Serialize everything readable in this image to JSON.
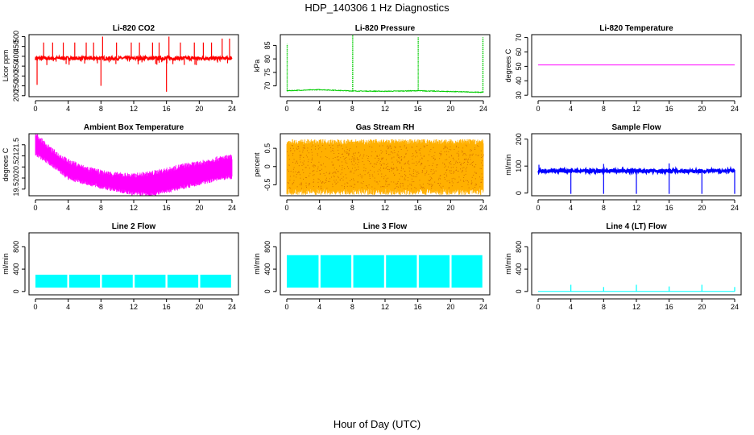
{
  "figure": {
    "title": "HDP_140306  1 Hz Diagnostics",
    "xlabel": "Hour of Day (UTC)"
  },
  "colors": {
    "co2": "#ff0000",
    "pressure": "#00cc00",
    "temperature": "#ff00ff",
    "box_temperature": "#ff00ff",
    "rh_fill": "#ffb000",
    "rh_dots": "#cc6600",
    "sample_flow": "#0000ff",
    "line_flow": "#00ffff"
  },
  "chart_data": [
    {
      "id": "co2",
      "type": "line",
      "title": "Li-820 CO2",
      "ylabel": "Licor ppm",
      "xlim": [
        0,
        24
      ],
      "ylim": [
        195,
        510
      ],
      "xticks": [
        0,
        4,
        8,
        12,
        16,
        20,
        24
      ],
      "yticks": [
        200,
        250,
        300,
        350,
        400,
        450,
        500
      ],
      "baseline": 390,
      "spikes": [
        [
          0.2,
          255
        ],
        [
          1.0,
          470
        ],
        [
          2.1,
          470
        ],
        [
          3.4,
          470
        ],
        [
          4.8,
          470
        ],
        [
          6.2,
          470
        ],
        [
          7.1,
          470
        ],
        [
          8.0,
          250
        ],
        [
          8.2,
          500
        ],
        [
          9.9,
          470
        ],
        [
          11.7,
          470
        ],
        [
          12.7,
          470
        ],
        [
          14.3,
          470
        ],
        [
          15.1,
          470
        ],
        [
          16.0,
          220
        ],
        [
          16.3,
          500
        ],
        [
          17.7,
          470
        ],
        [
          19.4,
          470
        ],
        [
          20.5,
          470
        ],
        [
          21.5,
          470
        ],
        [
          22.8,
          490
        ],
        [
          23.7,
          490
        ]
      ]
    },
    {
      "id": "pressure",
      "type": "line",
      "title": "Li-820 Pressure",
      "ylabel": "kPa",
      "xlim": [
        0,
        24
      ],
      "ylim": [
        66,
        89
      ],
      "xticks": [
        0,
        4,
        8,
        12,
        16,
        20,
        24
      ],
      "yticks": [
        70,
        75,
        80,
        85
      ],
      "baseline": [
        [
          0,
          68.2
        ],
        [
          4,
          68.6
        ],
        [
          8,
          68.1
        ],
        [
          12,
          68.0
        ],
        [
          16,
          68.2
        ],
        [
          20,
          67.9
        ],
        [
          24,
          67.6
        ]
      ],
      "spikes": [
        [
          0.05,
          85.5
        ],
        [
          8.05,
          89
        ],
        [
          16.05,
          88
        ],
        [
          23.95,
          88
        ]
      ]
    },
    {
      "id": "temperature",
      "type": "line",
      "title": "Li-820 Temperature",
      "ylabel": "degrees C",
      "xlim": [
        0,
        24
      ],
      "ylim": [
        29,
        72
      ],
      "xticks": [
        0,
        4,
        8,
        12,
        16,
        20,
        24
      ],
      "yticks": [
        30,
        40,
        50,
        60,
        70
      ],
      "constant": 51
    },
    {
      "id": "box_temperature",
      "type": "area",
      "title": "Ambient Box Temperature",
      "ylabel": "degrees C",
      "xlim": [
        0,
        24
      ],
      "ylim": [
        19.2,
        22.0
      ],
      "xticks": [
        0,
        4,
        8,
        12,
        16,
        20,
        24
      ],
      "yticks": [
        19.5,
        20.0,
        20.5,
        21.0,
        21.5
      ],
      "upper": [
        [
          0,
          21.9
        ],
        [
          2,
          21.2
        ],
        [
          4,
          20.7
        ],
        [
          6,
          20.4
        ],
        [
          8,
          20.2
        ],
        [
          10,
          20.1
        ],
        [
          12,
          20.05
        ],
        [
          14,
          20.15
        ],
        [
          16,
          20.3
        ],
        [
          18,
          20.5
        ],
        [
          20,
          20.6
        ],
        [
          22,
          20.8
        ],
        [
          24,
          20.9
        ]
      ],
      "lower": [
        [
          0,
          21.2
        ],
        [
          2,
          20.7
        ],
        [
          4,
          20.1
        ],
        [
          6,
          19.9
        ],
        [
          8,
          19.7
        ],
        [
          10,
          19.55
        ],
        [
          12,
          19.4
        ],
        [
          14,
          19.35
        ],
        [
          16,
          19.5
        ],
        [
          18,
          19.7
        ],
        [
          20,
          19.85
        ],
        [
          22,
          20.05
        ],
        [
          24,
          20.15
        ]
      ]
    },
    {
      "id": "rh",
      "type": "scatter",
      "title": "Gas Stream RH",
      "ylabel": "percent",
      "xlim": [
        0,
        24
      ],
      "ylim": [
        -0.8,
        0.9
      ],
      "xticks": [
        0,
        4,
        8,
        12,
        16,
        20,
        24
      ],
      "yticks": [
        -0.5,
        0.0,
        0.5
      ],
      "band": [
        -0.6,
        0.6
      ],
      "extremes": [
        -0.8,
        0.75
      ]
    },
    {
      "id": "sample_flow",
      "type": "line",
      "title": "Sample Flow",
      "ylabel": "ml/min",
      "xlim": [
        0,
        24
      ],
      "ylim": [
        -10,
        220
      ],
      "xticks": [
        0,
        4,
        8,
        12,
        16,
        20,
        24
      ],
      "yticks": [
        0,
        100,
        200
      ],
      "baseline": 82,
      "dips": [
        [
          4.0,
          -3
        ],
        [
          8.0,
          -3
        ],
        [
          12.0,
          -3
        ],
        [
          16.0,
          -3
        ],
        [
          20.0,
          -3
        ],
        [
          24.0,
          -3
        ]
      ],
      "spikes": [
        [
          0.1,
          105
        ],
        [
          8.0,
          108
        ],
        [
          16.0,
          110
        ]
      ]
    },
    {
      "id": "line2",
      "type": "area",
      "title": "Line 2 Flow",
      "ylabel": "ml/min",
      "xlim": [
        0,
        24
      ],
      "ylim": [
        -60,
        1050
      ],
      "xticks": [
        0,
        4,
        8,
        12,
        16,
        20,
        24
      ],
      "yticks": [
        0,
        400,
        800
      ],
      "band": [
        70,
        300
      ],
      "gaps": [
        4,
        8,
        12,
        16,
        20
      ]
    },
    {
      "id": "line3",
      "type": "area",
      "title": "Line 3 Flow",
      "ylabel": "ml/min",
      "xlim": [
        0,
        24
      ],
      "ylim": [
        -60,
        1050
      ],
      "xticks": [
        0,
        4,
        8,
        12,
        16,
        20,
        24
      ],
      "yticks": [
        0,
        400,
        800
      ],
      "band": [
        70,
        650
      ],
      "gaps": [
        4,
        8,
        12,
        16,
        20
      ]
    },
    {
      "id": "line4",
      "type": "line",
      "title": "Line 4 (LT) Flow",
      "ylabel": "ml/min",
      "xlim": [
        0,
        24
      ],
      "ylim": [
        -60,
        1050
      ],
      "xticks": [
        0,
        4,
        8,
        12,
        16,
        20,
        24
      ],
      "yticks": [
        0,
        400,
        800
      ],
      "baseline": 0,
      "spikes": [
        [
          4.0,
          120
        ],
        [
          8.0,
          80
        ],
        [
          12.0,
          120
        ],
        [
          16.0,
          90
        ],
        [
          20.0,
          120
        ],
        [
          24.0,
          80
        ]
      ]
    }
  ]
}
